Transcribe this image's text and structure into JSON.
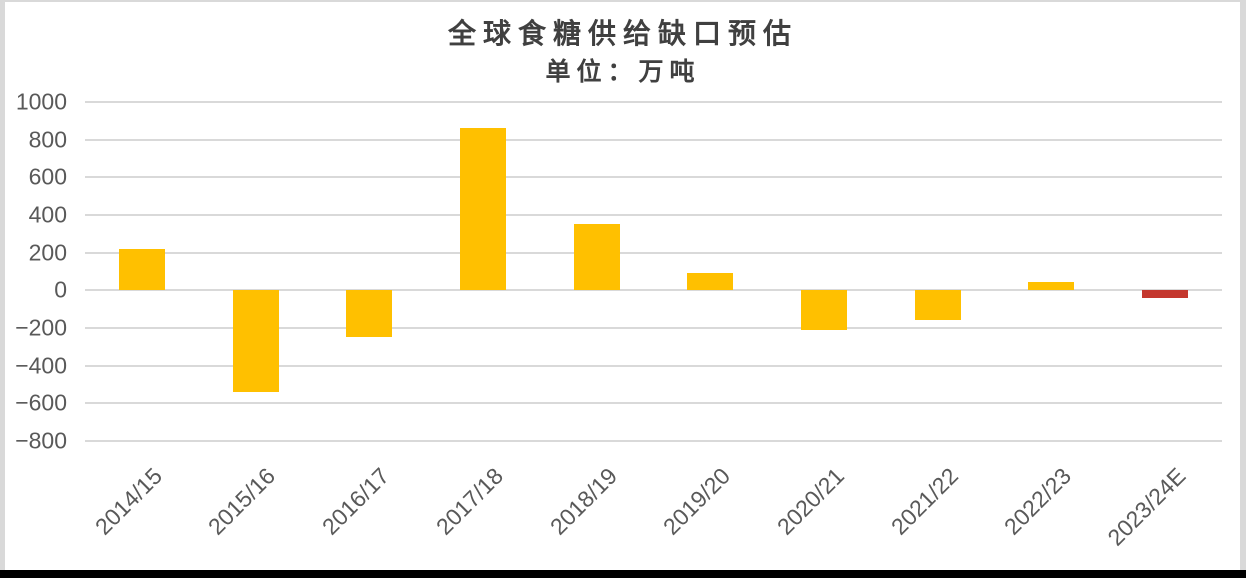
{
  "page": {
    "background_color": "#FFFFFF",
    "border_top_color": "#D9D9D9",
    "border_left_color": "#D9D9D9",
    "border_right_color": "#D9D9D9",
    "bottom_divider_color": "#000000"
  },
  "chart_data": {
    "type": "bar",
    "title": "全球食糖供给缺口预估",
    "subtitle": "单位：万吨",
    "categories": [
      "2014/15",
      "2015/16",
      "2016/17",
      "2017/18",
      "2018/19",
      "2019/20",
      "2020/21",
      "2021/22",
      "2022/23",
      "2023/24E"
    ],
    "values": [
      220,
      -540,
      -250,
      860,
      350,
      90,
      -210,
      -160,
      45,
      -40
    ],
    "yticks": [
      1000,
      800,
      600,
      400,
      200,
      0,
      -200,
      -400,
      -600,
      -800
    ],
    "ylim": [
      -800,
      1000
    ],
    "grid": true,
    "legend": false,
    "xlabel": "",
    "ylabel": "",
    "bar_color": "#FFC000",
    "highlight": {
      "index": 9,
      "color": "#C4372E"
    },
    "title_color": "#404040",
    "axis_label_color": "#595959",
    "gridline_color": "#D9D9D9"
  }
}
